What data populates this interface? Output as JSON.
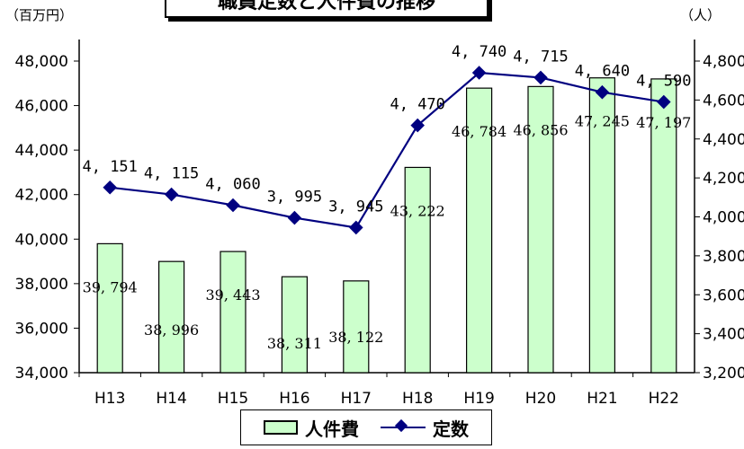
{
  "title": "職員定数と人件費の推移",
  "left_unit": "（百万円）",
  "right_unit": "（人）",
  "colors": {
    "bar_fill": "#ccffcc",
    "bar_stroke": "#000000",
    "line": "#000080"
  },
  "chart_data": {
    "type": "bar+line",
    "categories": [
      "H13",
      "H14",
      "H15",
      "H16",
      "H17",
      "H18",
      "H19",
      "H20",
      "H21",
      "H22"
    ],
    "series": [
      {
        "name": "人件費",
        "type": "bar",
        "axis": "left",
        "values": [
          39794,
          38996,
          39443,
          38311,
          38122,
          43222,
          46784,
          46856,
          47245,
          47197
        ],
        "labels": [
          "39, 794",
          "38, 996",
          "39, 443",
          "38, 311",
          "38, 122",
          "43, 222",
          "46, 784",
          "46, 856",
          "47, 245",
          "47, 197"
        ]
      },
      {
        "name": "定数",
        "type": "line",
        "axis": "right",
        "values": [
          4151,
          4115,
          4060,
          3995,
          3945,
          4470,
          4740,
          4715,
          4640,
          4590
        ],
        "labels": [
          "4, 151",
          "4, 115",
          "4, 060",
          "3, 995",
          "3, 945",
          "4, 470",
          "4, 740",
          "4, 715",
          "4, 640",
          "4, 590"
        ]
      }
    ],
    "y_left": {
      "min": 34000,
      "max": 48000,
      "step": 2000,
      "ticks": [
        "34,000",
        "36,000",
        "38,000",
        "40,000",
        "42,000",
        "44,000",
        "46,000",
        "48,000"
      ]
    },
    "y_right": {
      "min": 3200,
      "max": 4800,
      "step": 200,
      "ticks": [
        "3,200",
        "3,400",
        "3,600",
        "3,800",
        "4,000",
        "4,200",
        "4,400",
        "4,600",
        "4,800"
      ]
    },
    "grid": false,
    "legend": "bottom"
  }
}
